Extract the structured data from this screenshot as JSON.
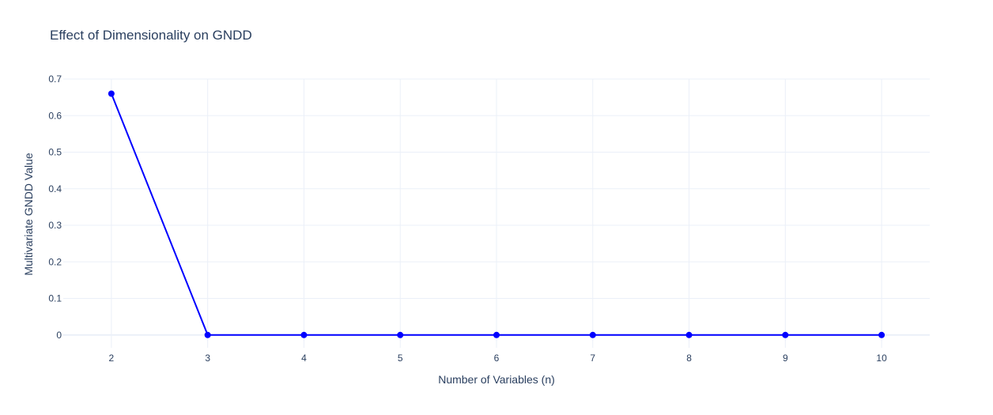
{
  "chart_data": {
    "type": "line",
    "title": "Effect of Dimensionality on GNDD",
    "xlabel": "Number of Variables (n)",
    "ylabel": "Multivariate GNDD Value",
    "x": [
      2,
      3,
      4,
      5,
      6,
      7,
      8,
      9,
      10
    ],
    "series": [
      {
        "values": [
          0.66,
          0,
          0,
          0,
          0,
          0,
          0,
          0,
          0
        ],
        "color": "#0000ff",
        "mode": "lines+markers"
      }
    ],
    "xticks": [
      "2",
      "3",
      "4",
      "5",
      "6",
      "7",
      "8",
      "9",
      "10"
    ],
    "yticks": [
      "0",
      "0.1",
      "0.2",
      "0.3",
      "0.4",
      "0.5",
      "0.6",
      "0.7"
    ],
    "xlim": [
      1.5,
      10.5
    ],
    "ylim": [
      -0.035,
      0.7
    ],
    "grid": true,
    "background": "#ffffff",
    "gridcolor": "#ebf0f8",
    "textcolor": "#2a3f5f"
  }
}
